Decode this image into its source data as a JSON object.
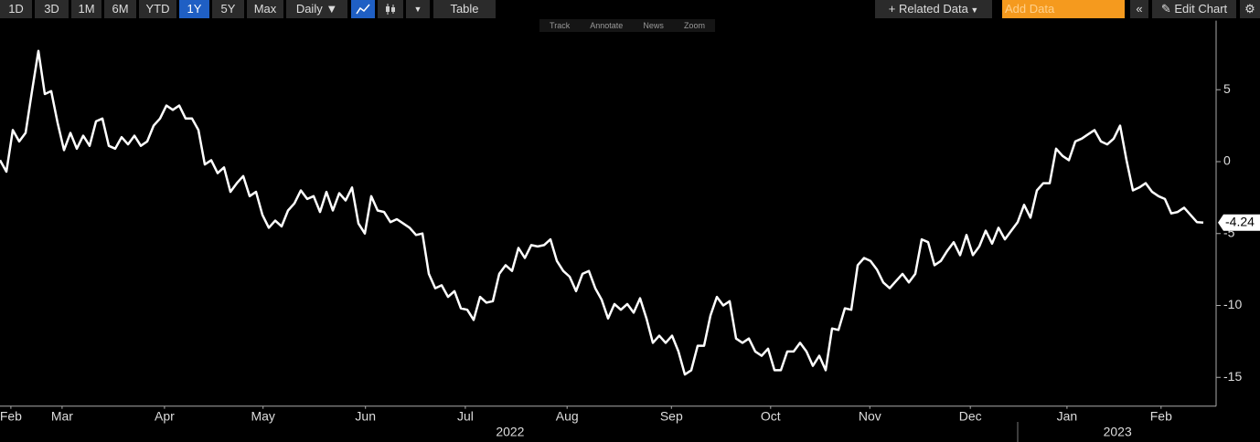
{
  "toolbar": {
    "ranges": [
      "1D",
      "3D",
      "1M",
      "6M",
      "YTD",
      "1Y",
      "5Y",
      "Max"
    ],
    "frequency": "Daily ▼",
    "table": "Table",
    "related": "Related Data",
    "add_data": "Add Data",
    "edit": "Edit Chart"
  },
  "subtoolbar": [
    "Track",
    "Annotate",
    "News",
    "Zoom"
  ],
  "chart_data": {
    "type": "line",
    "color": "#ffffff",
    "values": [
      0.1,
      -0.7,
      2.2,
      1.4,
      2.0,
      4.9,
      7.7,
      4.7,
      4.9,
      2.7,
      0.8,
      2.0,
      0.9,
      1.8,
      1.1,
      2.8,
      3.0,
      1.1,
      0.9,
      1.7,
      1.2,
      1.8,
      1.1,
      1.4,
      2.5,
      3.0,
      3.9,
      3.6,
      3.9,
      3.0,
      3.0,
      2.2,
      -0.2,
      0.1,
      -0.8,
      -0.4,
      -2.1,
      -1.5,
      -1.0,
      -2.4,
      -2.1,
      -3.7,
      -4.6,
      -4.1,
      -4.5,
      -3.4,
      -2.9,
      -2.0,
      -2.6,
      -2.4,
      -3.5,
      -2.1,
      -3.4,
      -2.2,
      -2.7,
      -1.8,
      -4.3,
      -5.0,
      -2.4,
      -3.4,
      -3.5,
      -4.2,
      -4.0,
      -4.3,
      -4.6,
      -5.1,
      -5.0,
      -7.8,
      -8.8,
      -8.6,
      -9.4,
      -9.0,
      -10.2,
      -10.3,
      -11.0,
      -9.4,
      -9.8,
      -9.7,
      -7.8,
      -7.2,
      -7.6,
      -6.0,
      -6.7,
      -5.8,
      -5.9,
      -5.8,
      -5.4,
      -6.9,
      -7.6,
      -8.0,
      -9.0,
      -7.8,
      -7.6,
      -8.8,
      -9.6,
      -10.9,
      -9.9,
      -10.3,
      -9.9,
      -10.5,
      -9.5,
      -10.9,
      -12.6,
      -12.1,
      -12.6,
      -12.1,
      -13.2,
      -14.8,
      -14.5,
      -12.8,
      -12.8,
      -10.7,
      -9.4,
      -10.0,
      -9.7,
      -12.3,
      -12.6,
      -12.3,
      -13.2,
      -13.5,
      -13.0,
      -14.5,
      -14.5,
      -13.2,
      -13.2,
      -12.6,
      -13.2,
      -14.2,
      -13.5,
      -14.5,
      -11.6,
      -11.7,
      -10.2,
      -10.3,
      -7.2,
      -6.7,
      -6.9,
      -7.5,
      -8.4,
      -8.8,
      -8.3,
      -7.8,
      -8.4,
      -7.8,
      -5.4,
      -5.6,
      -7.2,
      -6.9,
      -6.2,
      -5.6,
      -6.5,
      -5.1,
      -6.5,
      -5.9,
      -4.8,
      -5.7,
      -4.6,
      -5.4,
      -4.8,
      -4.2,
      -3.0,
      -3.9,
      -2.0,
      -1.5,
      -1.5,
      0.9,
      0.4,
      0.1,
      1.4,
      1.6,
      1.9,
      2.2,
      1.4,
      1.2,
      1.6,
      2.5,
      0.1,
      -2.0,
      -1.8,
      -1.5,
      -2.1,
      -2.4,
      -2.6,
      -3.6,
      -3.5,
      -3.2,
      -3.7,
      -4.2,
      -4.24
    ],
    "ylim": [
      -17,
      9.8
    ],
    "yticks": [
      -15,
      -10,
      -5,
      0,
      5
    ],
    "xticks": [
      {
        "value": 1.7,
        "label": "Feb"
      },
      {
        "value": 9.7,
        "label": "Mar"
      },
      {
        "value": 25.7,
        "label": "Apr"
      },
      {
        "value": 41.1,
        "label": "May"
      },
      {
        "value": 57.1,
        "label": "Jun"
      },
      {
        "value": 72.7,
        "label": "Jul"
      },
      {
        "value": 88.6,
        "label": "Aug"
      },
      {
        "value": 104.9,
        "label": "Sep"
      },
      {
        "value": 120.4,
        "label": "Oct"
      },
      {
        "value": 135.9,
        "label": "Nov"
      },
      {
        "value": 151.6,
        "label": "Dec"
      },
      {
        "value": 166.7,
        "label": "Jan"
      },
      {
        "value": 181.4,
        "label": "Feb"
      }
    ],
    "years": [
      {
        "value": 79.7,
        "label": "2022"
      },
      {
        "value": 174.6,
        "label": "2023"
      }
    ]
  }
}
